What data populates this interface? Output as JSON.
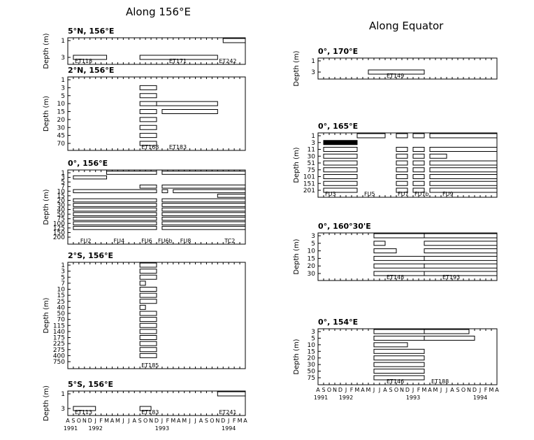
{
  "headings": {
    "left": "Along 156°E",
    "right": "Along Equator"
  },
  "axis_label": "Depth (m)",
  "month_letters": [
    "A",
    "S",
    "O",
    "N",
    "D",
    "J",
    "F",
    "M",
    "A",
    "M",
    "J",
    "J",
    "A",
    "S",
    "O",
    "N",
    "D",
    "J",
    "F",
    "M",
    "A",
    "M",
    "J",
    "J",
    "A",
    "S",
    "O",
    "N",
    "D",
    "J",
    "F",
    "M",
    "A"
  ],
  "year_labels": [
    "1991",
    "1992",
    "1993",
    "1994"
  ],
  "chart_data": [
    {
      "type": "bar",
      "title": "5°N, 156°E",
      "ylabel": "Depth (m)",
      "depths": [
        "1",
        "3"
      ],
      "bars": [
        {
          "row": 1,
          "start": "1991-09",
          "end": "1992-03",
          "fill": "white"
        },
        {
          "row": 1,
          "start": "1992-09",
          "end": "1993-11",
          "fill": "white"
        },
        {
          "row": 0,
          "start": "1993-12",
          "end": "1994-04",
          "fill": "white"
        }
      ],
      "labels": [
        {
          "text": "ET118",
          "at": "1991-09"
        },
        {
          "text": "ET171",
          "at": "1993-02"
        },
        {
          "text": "ET242",
          "at": "1993-11"
        }
      ]
    },
    {
      "type": "bar",
      "title": "2°N, 156°E",
      "ylabel": "Depth (m)",
      "depths": [
        "1",
        "3",
        "5",
        "10",
        "15",
        "20",
        "30",
        "45",
        "70"
      ],
      "bars": [
        {
          "row": 1,
          "start": "1992-09",
          "end": "1992-12",
          "fill": "white"
        },
        {
          "row": 2,
          "start": "1992-09",
          "end": "1992-12",
          "fill": "white"
        },
        {
          "row": 3,
          "start": "1992-09",
          "end": "1992-12",
          "fill": "white"
        },
        {
          "row": 3,
          "start": "1992-12",
          "end": "1993-11",
          "fill": "white"
        },
        {
          "row": 4,
          "start": "1992-09",
          "end": "1992-12",
          "fill": "white"
        },
        {
          "row": 4,
          "start": "1993-01",
          "end": "1993-11",
          "fill": "white"
        },
        {
          "row": 5,
          "start": "1992-09",
          "end": "1992-12",
          "fill": "white"
        },
        {
          "row": 6,
          "start": "1992-09",
          "end": "1992-12",
          "fill": "white"
        },
        {
          "row": 7,
          "start": "1992-09",
          "end": "1992-12",
          "fill": "white"
        },
        {
          "row": 8,
          "start": "1992-09",
          "end": "1992-12",
          "fill": "white"
        }
      ],
      "labels": [
        {
          "text": "ET168",
          "at": "1992-09"
        },
        {
          "text": "ET183",
          "at": "1993-02"
        }
      ]
    },
    {
      "type": "bar",
      "title": "0°, 156°E",
      "ylabel": "Depth (m)",
      "depths": [
        "1",
        "3",
        "5",
        "7",
        "10",
        "15",
        "20",
        "30",
        "40",
        "50",
        "75",
        "100",
        "125",
        "150",
        "200"
      ],
      "bars": [
        {
          "row": 0,
          "start": "1992-03",
          "end": "1992-12",
          "fill": "white"
        },
        {
          "row": 0,
          "start": "1993-01",
          "end": "1994-04",
          "fill": "white"
        },
        {
          "row": 1,
          "start": "1991-09",
          "end": "1992-03",
          "fill": "white"
        },
        {
          "row": 3,
          "start": "1992-09",
          "end": "1992-12",
          "fill": "white"
        },
        {
          "row": 3,
          "start": "1993-01",
          "end": "1994-04",
          "fill": "white"
        },
        {
          "row": 4,
          "start": "1991-09",
          "end": "1992-12",
          "fill": "white"
        },
        {
          "row": 4,
          "start": "1993-01",
          "end": "1993-02",
          "fill": "white"
        },
        {
          "row": 4,
          "start": "1993-03",
          "end": "1994-04",
          "fill": "white"
        },
        {
          "row": 5,
          "start": "1993-11",
          "end": "1994-04",
          "fill": "white"
        },
        {
          "row": 6,
          "start": "1991-09",
          "end": "1992-12",
          "fill": "white"
        },
        {
          "row": 6,
          "start": "1993-01",
          "end": "1994-04",
          "fill": "white"
        },
        {
          "row": 7,
          "start": "1991-09",
          "end": "1992-12",
          "fill": "white"
        },
        {
          "row": 7,
          "start": "1993-01",
          "end": "1994-04",
          "fill": "white"
        },
        {
          "row": 8,
          "start": "1991-09",
          "end": "1992-12",
          "fill": "white"
        },
        {
          "row": 8,
          "start": "1993-01",
          "end": "1994-04",
          "fill": "white"
        },
        {
          "row": 9,
          "start": "1991-09",
          "end": "1992-12",
          "fill": "white"
        },
        {
          "row": 9,
          "start": "1993-01",
          "end": "1994-04",
          "fill": "white"
        },
        {
          "row": 10,
          "start": "1991-09",
          "end": "1992-12",
          "fill": "white"
        },
        {
          "row": 10,
          "start": "1993-01",
          "end": "1994-04",
          "fill": "white"
        },
        {
          "row": 11,
          "start": "1991-09",
          "end": "1992-12",
          "fill": "white"
        },
        {
          "row": 11,
          "start": "1993-01",
          "end": "1994-04",
          "fill": "white"
        },
        {
          "row": 12,
          "start": "1991-09",
          "end": "1992-12",
          "fill": "white"
        },
        {
          "row": 12,
          "start": "1993-01",
          "end": "1994-04",
          "fill": "white"
        }
      ],
      "labels": [
        {
          "text": "FU2",
          "at": "1991-10"
        },
        {
          "text": "FU4",
          "at": "1992-04"
        },
        {
          "text": "FU6",
          "at": "1992-09"
        },
        {
          "text": "FU6b",
          "at": "1992-12"
        },
        {
          "text": "FU8",
          "at": "1993-04"
        },
        {
          "text": "TC2",
          "at": "1993-12"
        }
      ]
    },
    {
      "type": "bar",
      "title": "2°S, 156°E",
      "ylabel": "Depth (m)",
      "depths": [
        "1",
        "3",
        "5",
        "7",
        "10",
        "15",
        "25",
        "40",
        "50",
        "70",
        "115",
        "140",
        "175",
        "225",
        "275",
        "400",
        "750"
      ],
      "bars": [
        {
          "row": 0,
          "start": "1992-09",
          "end": "1992-12",
          "fill": "white"
        },
        {
          "row": 1,
          "start": "1992-09",
          "end": "1992-12",
          "fill": "white"
        },
        {
          "row": 2,
          "start": "1992-09",
          "end": "1992-12",
          "fill": "white"
        },
        {
          "row": 3,
          "start": "1992-09",
          "end": "1992-10",
          "fill": "white"
        },
        {
          "row": 4,
          "start": "1992-09",
          "end": "1992-12",
          "fill": "white"
        },
        {
          "row": 5,
          "start": "1992-09",
          "end": "1992-12",
          "fill": "white"
        },
        {
          "row": 6,
          "start": "1992-09",
          "end": "1992-12",
          "fill": "white"
        },
        {
          "row": 7,
          "start": "1992-09",
          "end": "1992-10",
          "fill": "white"
        },
        {
          "row": 8,
          "start": "1992-09",
          "end": "1992-12",
          "fill": "white"
        },
        {
          "row": 9,
          "start": "1992-09",
          "end": "1992-12",
          "fill": "white"
        },
        {
          "row": 10,
          "start": "1992-09",
          "end": "1992-12",
          "fill": "white"
        },
        {
          "row": 11,
          "start": "1992-09",
          "end": "1992-12",
          "fill": "white"
        },
        {
          "row": 12,
          "start": "1992-09",
          "end": "1992-12",
          "fill": "white"
        },
        {
          "row": 13,
          "start": "1992-09",
          "end": "1992-12",
          "fill": "white"
        },
        {
          "row": 14,
          "start": "1992-09",
          "end": "1992-12",
          "fill": "white"
        },
        {
          "row": 15,
          "start": "1992-09",
          "end": "1992-12",
          "fill": "white"
        }
      ],
      "labels": [
        {
          "text": "ET185",
          "at": "1992-09"
        }
      ]
    },
    {
      "type": "bar",
      "title": "5°S, 156°E",
      "ylabel": "Depth (m)",
      "depths": [
        "1",
        "3"
      ],
      "bars": [
        {
          "row": 0,
          "start": "1993-11",
          "end": "1994-04",
          "fill": "white"
        },
        {
          "row": 1,
          "start": "1991-09",
          "end": "1992-01",
          "fill": "white"
        },
        {
          "row": 1,
          "start": "1992-09",
          "end": "1992-11",
          "fill": "white"
        }
      ],
      "labels": [
        {
          "text": "ET113",
          "at": "1991-09"
        },
        {
          "text": "ET183",
          "at": "1992-09"
        },
        {
          "text": "ET241",
          "at": "1993-11"
        }
      ]
    },
    {
      "type": "bar",
      "title": "0°, 170°E",
      "ylabel": "Depth (m)",
      "depths": [
        "1",
        "3"
      ],
      "bars": [
        {
          "row": 1,
          "start": "1992-05",
          "end": "1993-03",
          "fill": "white"
        }
      ],
      "labels": [
        {
          "text": "ET149",
          "at": "1992-08"
        }
      ]
    },
    {
      "type": "bar",
      "title": "0°, 165°E",
      "ylabel": "Depth (m)",
      "depths": [
        "1",
        "3",
        "11",
        "30",
        "51",
        "75",
        "101",
        "151",
        "201"
      ],
      "bars": [
        {
          "row": 0,
          "start": "1992-03",
          "end": "1992-08",
          "fill": "white"
        },
        {
          "row": 0,
          "start": "1992-10",
          "end": "1992-12",
          "fill": "white"
        },
        {
          "row": 0,
          "start": "1993-01",
          "end": "1993-03",
          "fill": "white"
        },
        {
          "row": 0,
          "start": "1993-04",
          "end": "1994-04",
          "fill": "white"
        },
        {
          "row": 1,
          "start": "1991-09",
          "end": "1992-03",
          "fill": "black"
        },
        {
          "row": 2,
          "start": "1991-09",
          "end": "1992-03",
          "fill": "white"
        },
        {
          "row": 2,
          "start": "1992-10",
          "end": "1992-12",
          "fill": "white"
        },
        {
          "row": 2,
          "start": "1993-01",
          "end": "1993-03",
          "fill": "white"
        },
        {
          "row": 2,
          "start": "1993-04",
          "end": "1994-04",
          "fill": "white"
        },
        {
          "row": 3,
          "start": "1991-09",
          "end": "1992-03",
          "fill": "white"
        },
        {
          "row": 3,
          "start": "1992-10",
          "end": "1992-12",
          "fill": "white"
        },
        {
          "row": 3,
          "start": "1993-01",
          "end": "1993-03",
          "fill": "white"
        },
        {
          "row": 3,
          "start": "1993-04",
          "end": "1993-07",
          "fill": "white"
        },
        {
          "row": 4,
          "start": "1991-09",
          "end": "1992-03",
          "fill": "white"
        },
        {
          "row": 4,
          "start": "1992-10",
          "end": "1992-12",
          "fill": "white"
        },
        {
          "row": 4,
          "start": "1993-01",
          "end": "1993-03",
          "fill": "white"
        },
        {
          "row": 4,
          "start": "1993-04",
          "end": "1994-04",
          "fill": "white"
        },
        {
          "row": 5,
          "start": "1991-09",
          "end": "1992-03",
          "fill": "white"
        },
        {
          "row": 5,
          "start": "1992-10",
          "end": "1992-12",
          "fill": "white"
        },
        {
          "row": 5,
          "start": "1993-01",
          "end": "1993-03",
          "fill": "white"
        },
        {
          "row": 5,
          "start": "1993-04",
          "end": "1994-04",
          "fill": "white"
        },
        {
          "row": 6,
          "start": "1991-09",
          "end": "1992-03",
          "fill": "white"
        },
        {
          "row": 6,
          "start": "1992-10",
          "end": "1992-12",
          "fill": "white"
        },
        {
          "row": 6,
          "start": "1993-01",
          "end": "1993-03",
          "fill": "white"
        },
        {
          "row": 6,
          "start": "1993-04",
          "end": "1994-04",
          "fill": "white"
        },
        {
          "row": 7,
          "start": "1991-09",
          "end": "1992-03",
          "fill": "white"
        },
        {
          "row": 7,
          "start": "1992-10",
          "end": "1992-12",
          "fill": "white"
        },
        {
          "row": 7,
          "start": "1993-01",
          "end": "1993-03",
          "fill": "white"
        },
        {
          "row": 7,
          "start": "1993-04",
          "end": "1994-04",
          "fill": "white"
        },
        {
          "row": 8,
          "start": "1991-09",
          "end": "1992-03",
          "fill": "white"
        },
        {
          "row": 8,
          "start": "1992-10",
          "end": "1992-12",
          "fill": "white"
        },
        {
          "row": 8,
          "start": "1993-01",
          "end": "1993-03",
          "fill": "white"
        },
        {
          "row": 8,
          "start": "1993-04",
          "end": "1994-04",
          "fill": "white"
        }
      ],
      "labels": [
        {
          "text": "FU3",
          "at": "1991-09"
        },
        {
          "text": "FU5",
          "at": "1992-04"
        },
        {
          "text": "FU7",
          "at": "1992-10"
        },
        {
          "text": "FU7b",
          "at": "1993-01"
        },
        {
          "text": "FU9",
          "at": "1993-06"
        }
      ]
    },
    {
      "type": "bar",
      "title": "0°, 160°30'E",
      "ylabel": "Depth (m)",
      "depths": [
        "3",
        "5",
        "10",
        "15",
        "20",
        "30"
      ],
      "bars": [
        {
          "row": 0,
          "start": "1992-06",
          "end": "1993-03",
          "fill": "white"
        },
        {
          "row": 0,
          "start": "1993-03",
          "end": "1994-04",
          "fill": "white"
        },
        {
          "row": 1,
          "start": "1992-06",
          "end": "1992-08",
          "fill": "white"
        },
        {
          "row": 1,
          "start": "1993-03",
          "end": "1994-04",
          "fill": "white"
        },
        {
          "row": 2,
          "start": "1992-06",
          "end": "1992-10",
          "fill": "white"
        },
        {
          "row": 2,
          "start": "1993-03",
          "end": "1994-04",
          "fill": "white"
        },
        {
          "row": 3,
          "start": "1992-06",
          "end": "1993-03",
          "fill": "white"
        },
        {
          "row": 3,
          "start": "1993-03",
          "end": "1994-04",
          "fill": "white"
        },
        {
          "row": 4,
          "start": "1992-06",
          "end": "1993-03",
          "fill": "white"
        },
        {
          "row": 4,
          "start": "1993-03",
          "end": "1994-04",
          "fill": "white"
        },
        {
          "row": 5,
          "start": "1992-06",
          "end": "1993-03",
          "fill": "white"
        },
        {
          "row": 5,
          "start": "1993-03",
          "end": "1994-04",
          "fill": "white"
        }
      ],
      "labels": [
        {
          "text": "ET148",
          "at": "1992-08"
        },
        {
          "text": "ET193",
          "at": "1993-06"
        }
      ]
    },
    {
      "type": "bar",
      "title": "0°, 154°E",
      "ylabel": "Depth (m)",
      "depths": [
        "3",
        "5",
        "10",
        "15",
        "20",
        "30",
        "50",
        "75"
      ],
      "bars": [
        {
          "row": 0,
          "start": "1992-06",
          "end": "1993-03",
          "fill": "white"
        },
        {
          "row": 0,
          "start": "1993-03",
          "end": "1993-11",
          "fill": "white"
        },
        {
          "row": 1,
          "start": "1992-06",
          "end": "1993-03",
          "fill": "white"
        },
        {
          "row": 1,
          "start": "1993-03",
          "end": "1993-12",
          "fill": "white"
        },
        {
          "row": 2,
          "start": "1992-06",
          "end": "1992-12",
          "fill": "white"
        },
        {
          "row": 3,
          "start": "1992-06",
          "end": "1993-03",
          "fill": "white"
        },
        {
          "row": 4,
          "start": "1992-06",
          "end": "1993-03",
          "fill": "white"
        },
        {
          "row": 5,
          "start": "1992-06",
          "end": "1993-03",
          "fill": "white"
        },
        {
          "row": 6,
          "start": "1992-06",
          "end": "1993-03",
          "fill": "white"
        },
        {
          "row": 7,
          "start": "1992-06",
          "end": "1993-03",
          "fill": "white"
        }
      ],
      "labels": [
        {
          "text": "ET146",
          "at": "1992-08"
        },
        {
          "text": "ET188",
          "at": "1993-04"
        }
      ]
    }
  ]
}
